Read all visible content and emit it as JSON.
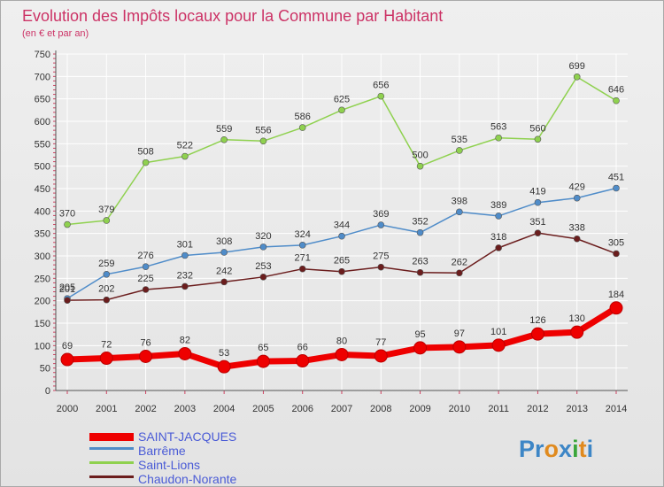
{
  "chart_data": {
    "type": "line",
    "title": "Evolution des Impôts locaux pour la Commune par Habitant",
    "subtitle": "(en € et par an)",
    "x": [
      "2000",
      "2001",
      "2002",
      "2003",
      "2004",
      "2005",
      "2006",
      "2007",
      "2008",
      "2009",
      "2010",
      "2011",
      "2012",
      "2013",
      "2014"
    ],
    "ylim": [
      0,
      750
    ],
    "yticks": [
      0,
      50,
      100,
      150,
      200,
      250,
      300,
      350,
      400,
      450,
      500,
      550,
      600,
      650,
      700,
      750
    ],
    "grid": true,
    "legend_position": "bottom-left",
    "series": [
      {
        "name": "SAINT-JACQUES",
        "color": "#ee0000",
        "values": [
          69,
          72,
          76,
          82,
          53,
          65,
          66,
          80,
          77,
          95,
          97,
          101,
          126,
          130,
          184
        ]
      },
      {
        "name": "Barrême",
        "color": "#4f8cc9",
        "values": [
          205,
          259,
          276,
          301,
          308,
          320,
          324,
          344,
          369,
          352,
          398,
          389,
          419,
          429,
          451
        ]
      },
      {
        "name": "Saint-Lions",
        "color": "#8fd14f",
        "values": [
          370,
          379,
          508,
          522,
          559,
          556,
          586,
          625,
          656,
          500,
          535,
          563,
          560,
          699,
          646
        ]
      },
      {
        "name": "Chaudon-Norante",
        "color": "#6b1d1d",
        "values": [
          201,
          202,
          225,
          232,
          242,
          253,
          271,
          265,
          275,
          263,
          262,
          318,
          351,
          338,
          305
        ]
      }
    ]
  },
  "logo": {
    "text": "Proxiti"
  }
}
